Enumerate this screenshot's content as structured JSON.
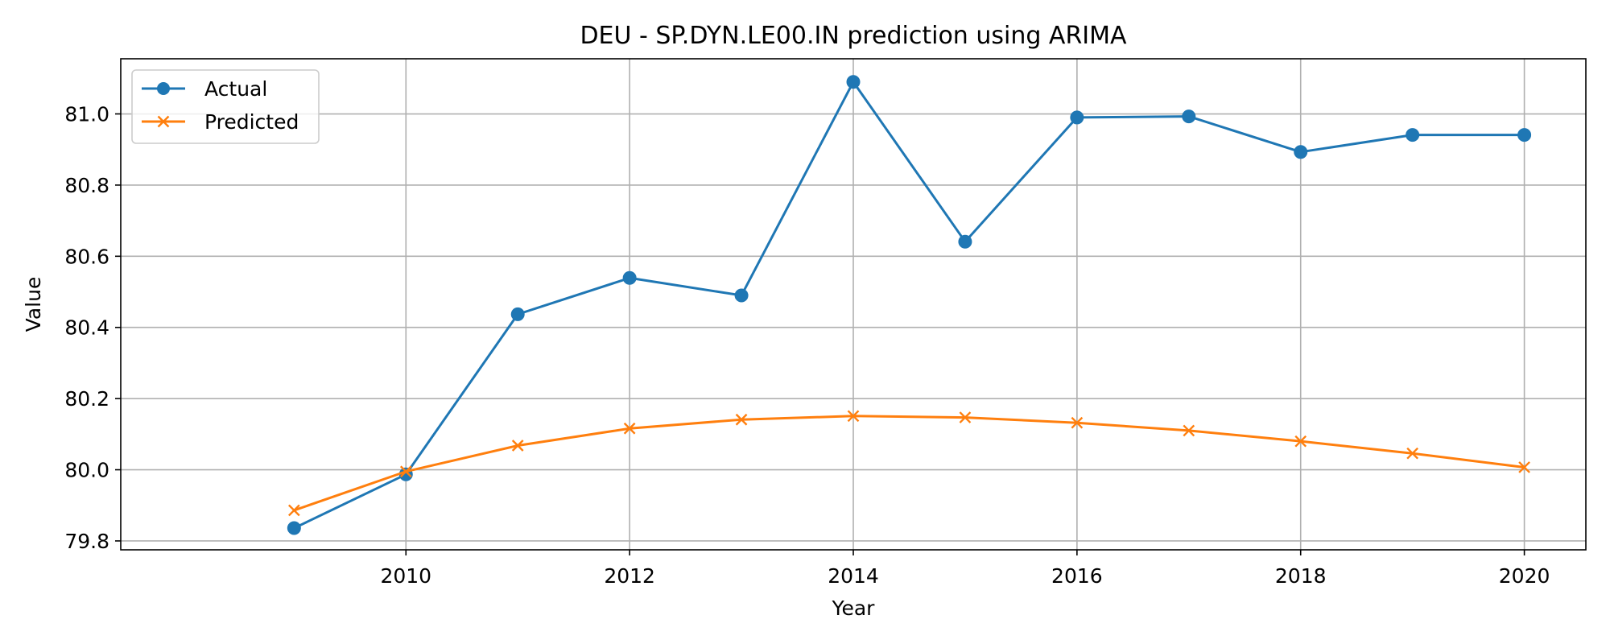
{
  "chart_data": {
    "type": "line",
    "title": "DEU - SP.DYN.LE00.IN prediction using ARIMA",
    "xlabel": "Year",
    "ylabel": "Value",
    "x": [
      2009,
      2010,
      2011,
      2012,
      2013,
      2014,
      2015,
      2016,
      2017,
      2018,
      2019,
      2020
    ],
    "xlim": [
      2007.45,
      2020.55
    ],
    "ylim": [
      79.775,
      81.155
    ],
    "xticks": [
      2010,
      2012,
      2014,
      2016,
      2018,
      2020
    ],
    "yticks": [
      79.8,
      80.0,
      80.2,
      80.4,
      80.6,
      80.8,
      81.0
    ],
    "grid": true,
    "legend_position": "top-left",
    "series": [
      {
        "name": "Actual",
        "color": "#1f77b4",
        "marker": "circle",
        "values": [
          79.836,
          79.987,
          80.437,
          80.539,
          80.49,
          81.09,
          80.641,
          80.99,
          80.993,
          80.893,
          80.941,
          80.941
        ]
      },
      {
        "name": "Predicted",
        "color": "#ff7f0e",
        "marker": "x",
        "values": [
          79.886,
          79.995,
          80.068,
          80.116,
          80.141,
          80.151,
          80.147,
          80.132,
          80.11,
          80.08,
          80.046,
          80.007
        ]
      }
    ]
  }
}
